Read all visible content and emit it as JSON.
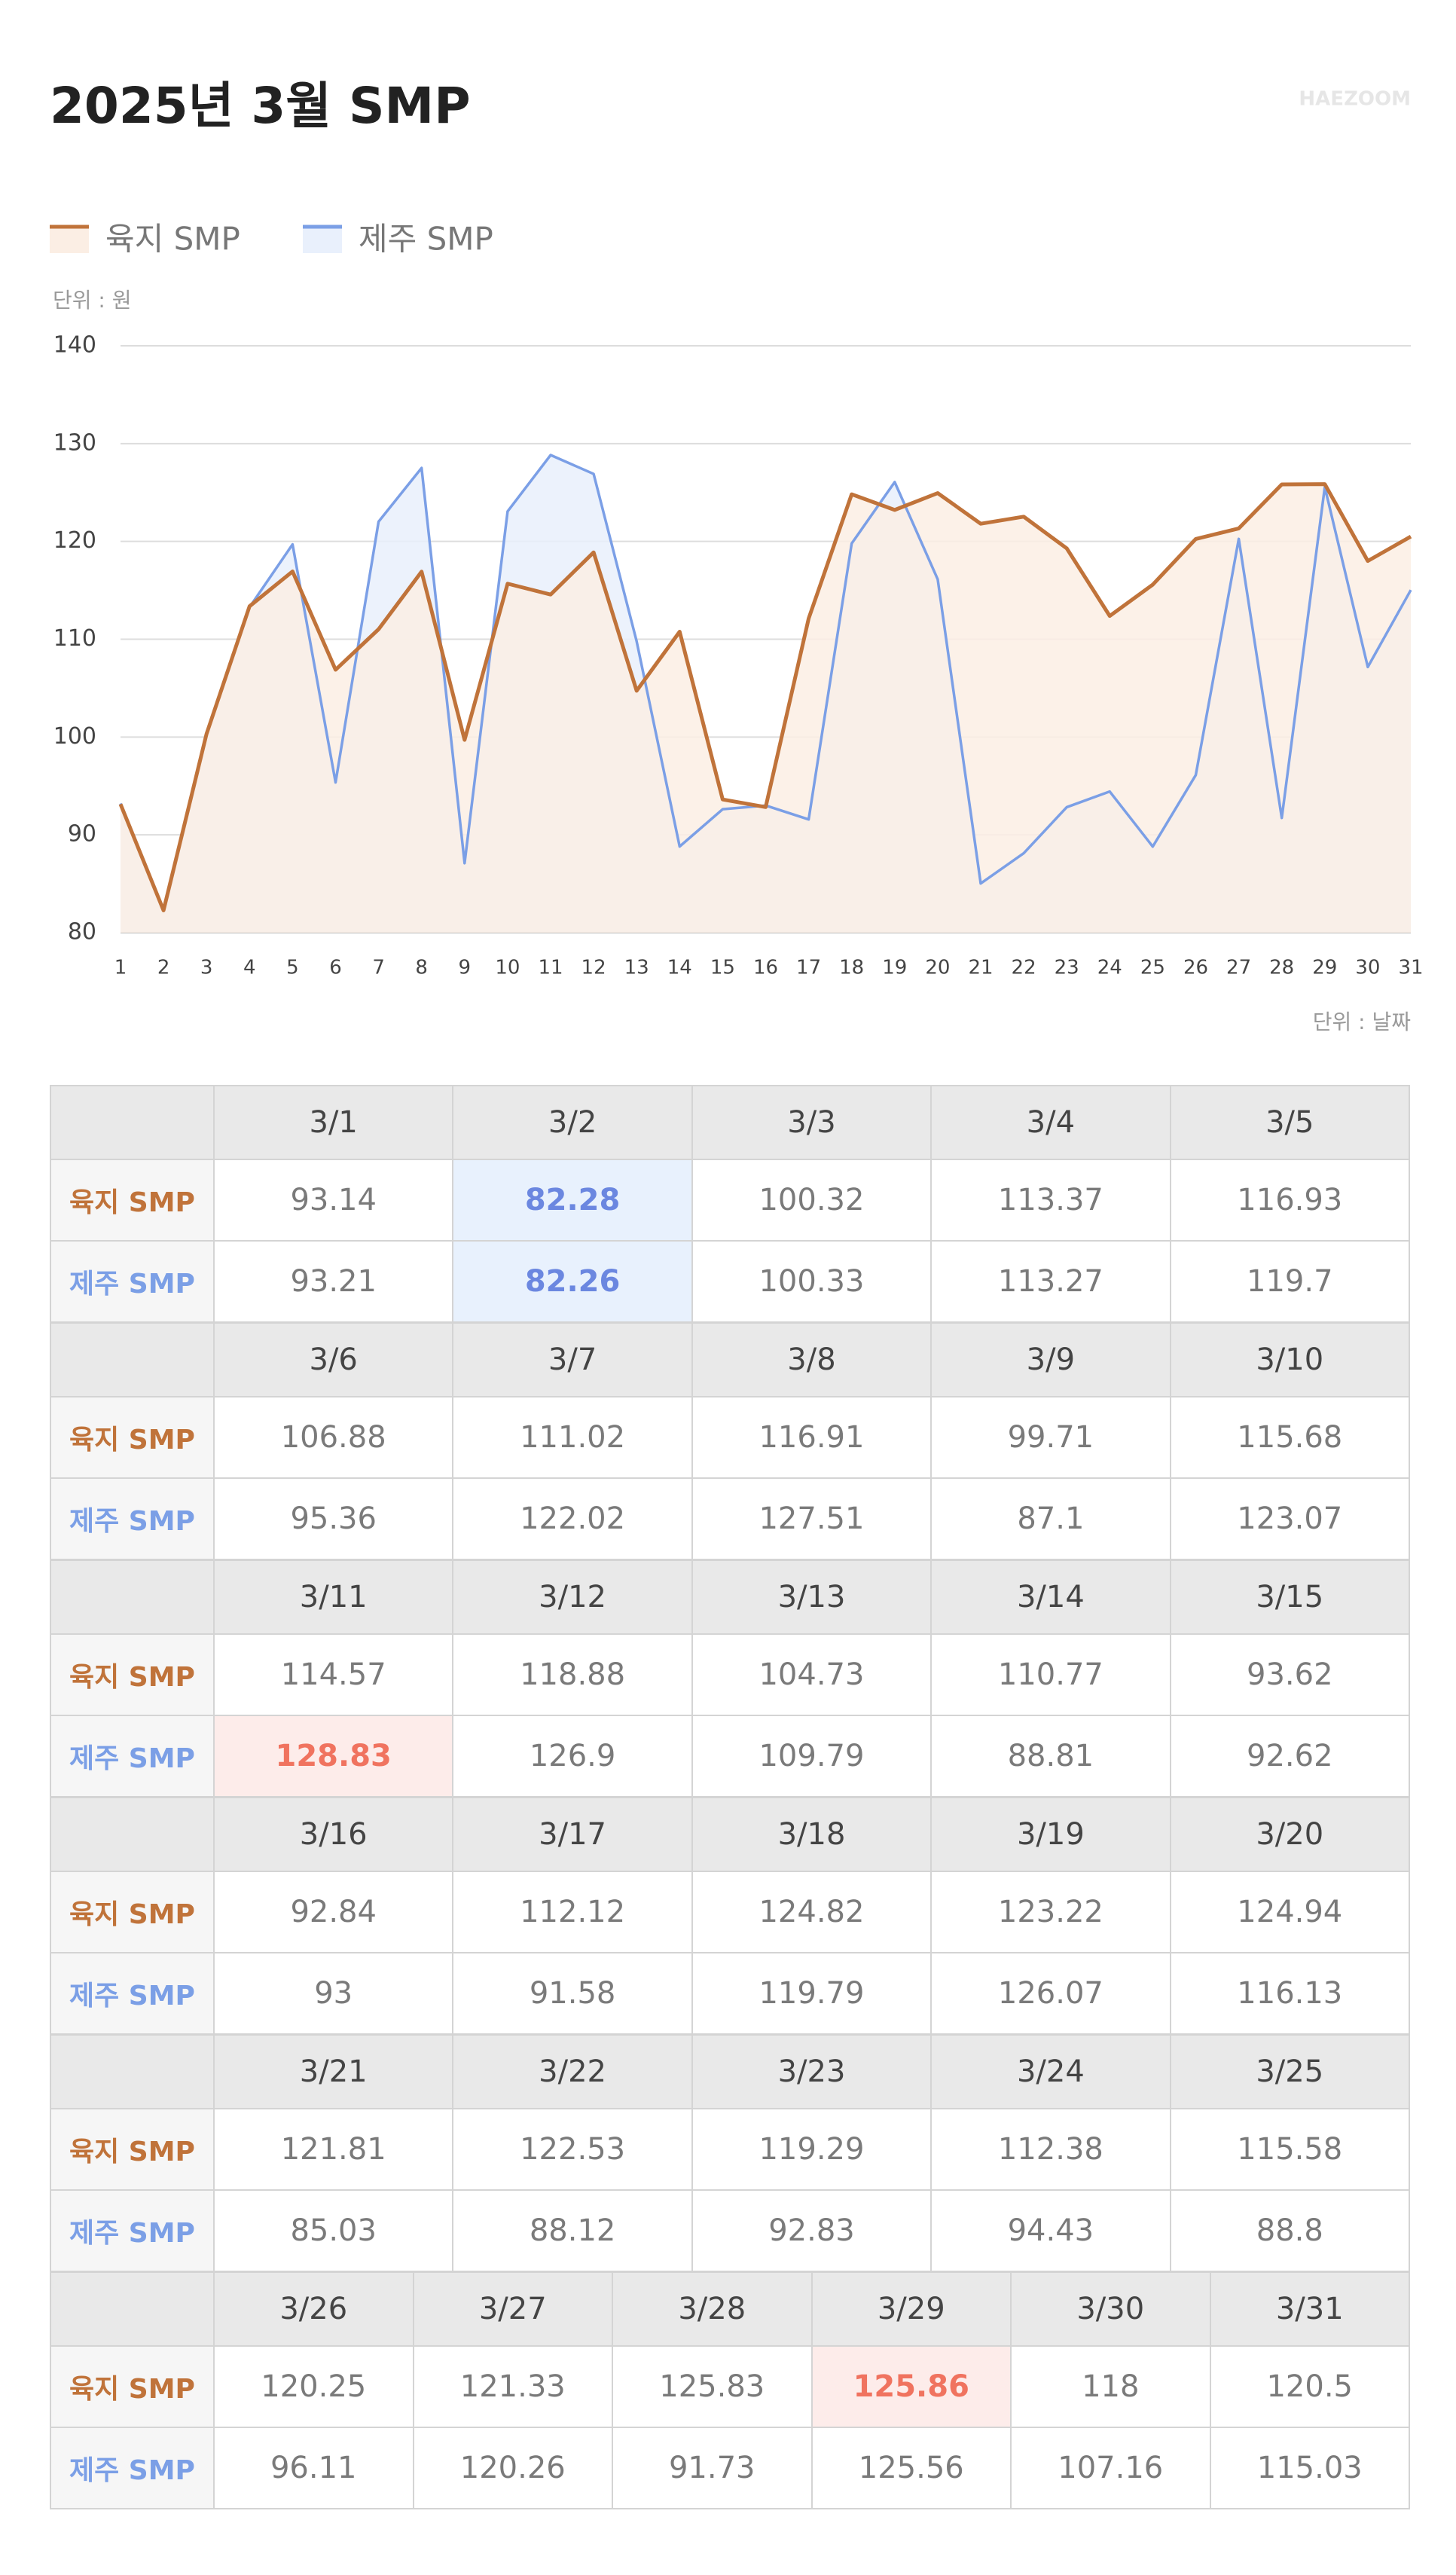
{
  "chart_data": {
    "type": "line",
    "title": "2025년 3월 SMP",
    "brand": "HAEZOOM",
    "y_unit": "단위 : 원",
    "x_unit": "단위 : 날짜",
    "categories": [
      "1",
      "2",
      "3",
      "4",
      "5",
      "6",
      "7",
      "8",
      "9",
      "10",
      "11",
      "12",
      "13",
      "14",
      "15",
      "16",
      "17",
      "18",
      "19",
      "20",
      "21",
      "22",
      "23",
      "24",
      "25",
      "26",
      "27",
      "28",
      "29",
      "30",
      "31"
    ],
    "ylim": [
      80,
      140
    ],
    "yticks": [
      80,
      90,
      100,
      110,
      120,
      130,
      140
    ],
    "grid": true,
    "series": [
      {
        "name": "육지 SMP",
        "color": "#c0733a",
        "fill": "#fbeee4",
        "values": [
          93.14,
          82.28,
          100.32,
          113.37,
          116.93,
          106.88,
          111.02,
          116.91,
          99.71,
          115.68,
          114.57,
          118.88,
          104.73,
          110.77,
          93.62,
          92.84,
          112.12,
          124.82,
          123.22,
          124.94,
          121.81,
          122.53,
          119.29,
          112.38,
          115.58,
          120.25,
          121.33,
          125.83,
          125.86,
          118,
          120.5
        ]
      },
      {
        "name": "제주 SMP",
        "color": "#7b9fe6",
        "fill": "#e9f0fc",
        "values": [
          93.21,
          82.26,
          100.33,
          113.27,
          119.7,
          95.36,
          122.02,
          127.51,
          87.1,
          123.07,
          128.83,
          126.9,
          109.79,
          88.81,
          92.62,
          93,
          91.58,
          119.79,
          126.07,
          116.13,
          85.03,
          88.12,
          92.83,
          94.43,
          88.8,
          96.11,
          120.26,
          91.73,
          125.56,
          107.16,
          115.03
        ]
      }
    ]
  },
  "table": {
    "dates": [
      "3/1",
      "3/2",
      "3/3",
      "3/4",
      "3/5",
      "3/6",
      "3/7",
      "3/8",
      "3/9",
      "3/10",
      "3/11",
      "3/12",
      "3/13",
      "3/14",
      "3/15",
      "3/16",
      "3/17",
      "3/18",
      "3/19",
      "3/20",
      "3/21",
      "3/22",
      "3/23",
      "3/24",
      "3/25",
      "3/26",
      "3/27",
      "3/28",
      "3/29",
      "3/30",
      "3/31"
    ]
  }
}
